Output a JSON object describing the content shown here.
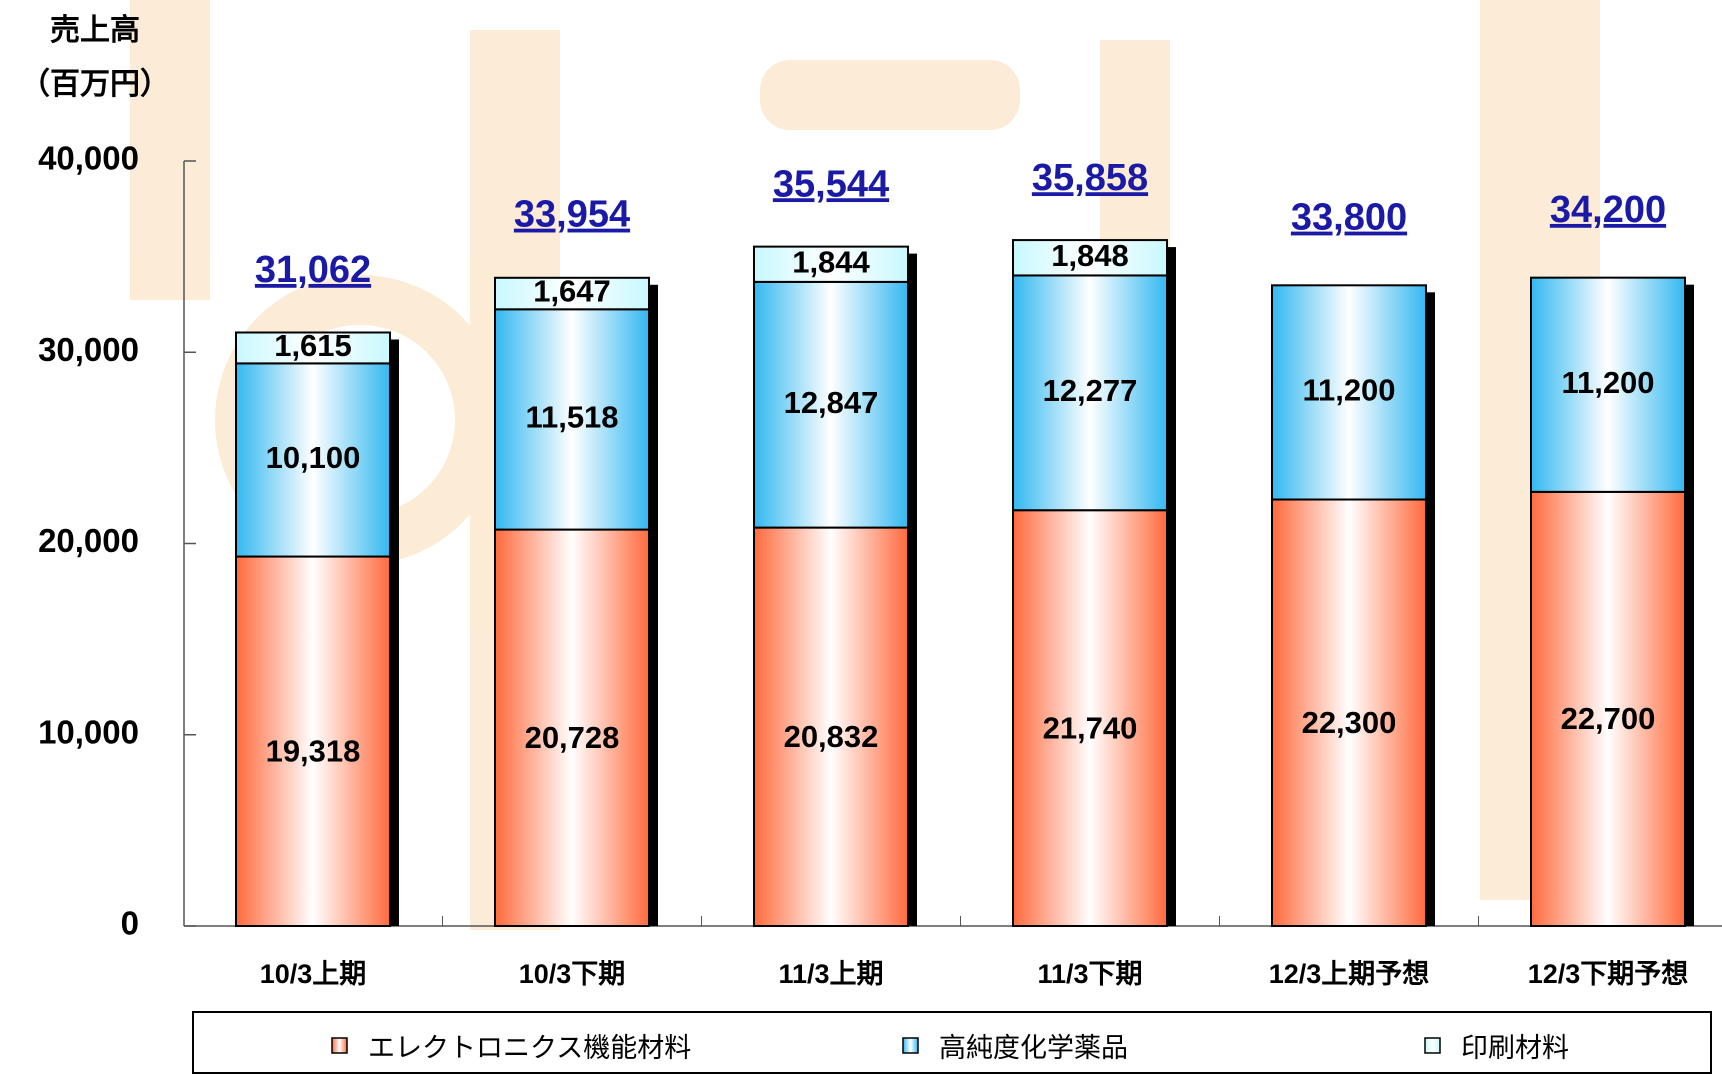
{
  "chart_data": {
    "type": "stacked_bar",
    "y_axis_title": [
      "売上高",
      "（百万円）"
    ],
    "categories": [
      "10/3上期",
      "10/3下期",
      "11/3上期",
      "11/3下期",
      "12/3上期予想",
      "12/3下期予想"
    ],
    "series": [
      {
        "name": "エレクトロニクス機能材料",
        "color": "#ff6a3d",
        "values": [
          19318,
          20728,
          20832,
          21740,
          22300,
          22700
        ],
        "value_labels": [
          "19,318",
          "20,728",
          "20,832",
          "21,740",
          "22,300",
          "22,700"
        ]
      },
      {
        "name": "高純度化学薬品",
        "color": "#33b8f0",
        "values": [
          10100,
          11518,
          12847,
          12277,
          11200,
          11200
        ],
        "value_labels": [
          "10,100",
          "11,518",
          "12,847",
          "12,277",
          "11,200",
          "11,200"
        ]
      },
      {
        "name": "印刷材料",
        "color": "#c8f8ff",
        "values": [
          1615,
          1647,
          1844,
          1848,
          null,
          null
        ],
        "value_labels": [
          "1,615",
          "1,647",
          "1,844",
          "1,848",
          null,
          null
        ]
      }
    ],
    "totals": [
      31062,
      33954,
      35544,
      35858,
      33800,
      34200
    ],
    "total_labels": [
      "31,062",
      "33,954",
      "35,544",
      "35,858",
      "33,800",
      "34,200"
    ],
    "ylim": [
      0,
      40000
    ],
    "yticks": [
      0,
      {
        "value": 10000,
        "label": "10,000"
      },
      {
        "value": 20000,
        "label": "20,000"
      },
      {
        "value": 30000,
        "label": "30,000"
      },
      {
        "value": 40000,
        "label": "40,000"
      }
    ],
    "legend": "bottom"
  }
}
